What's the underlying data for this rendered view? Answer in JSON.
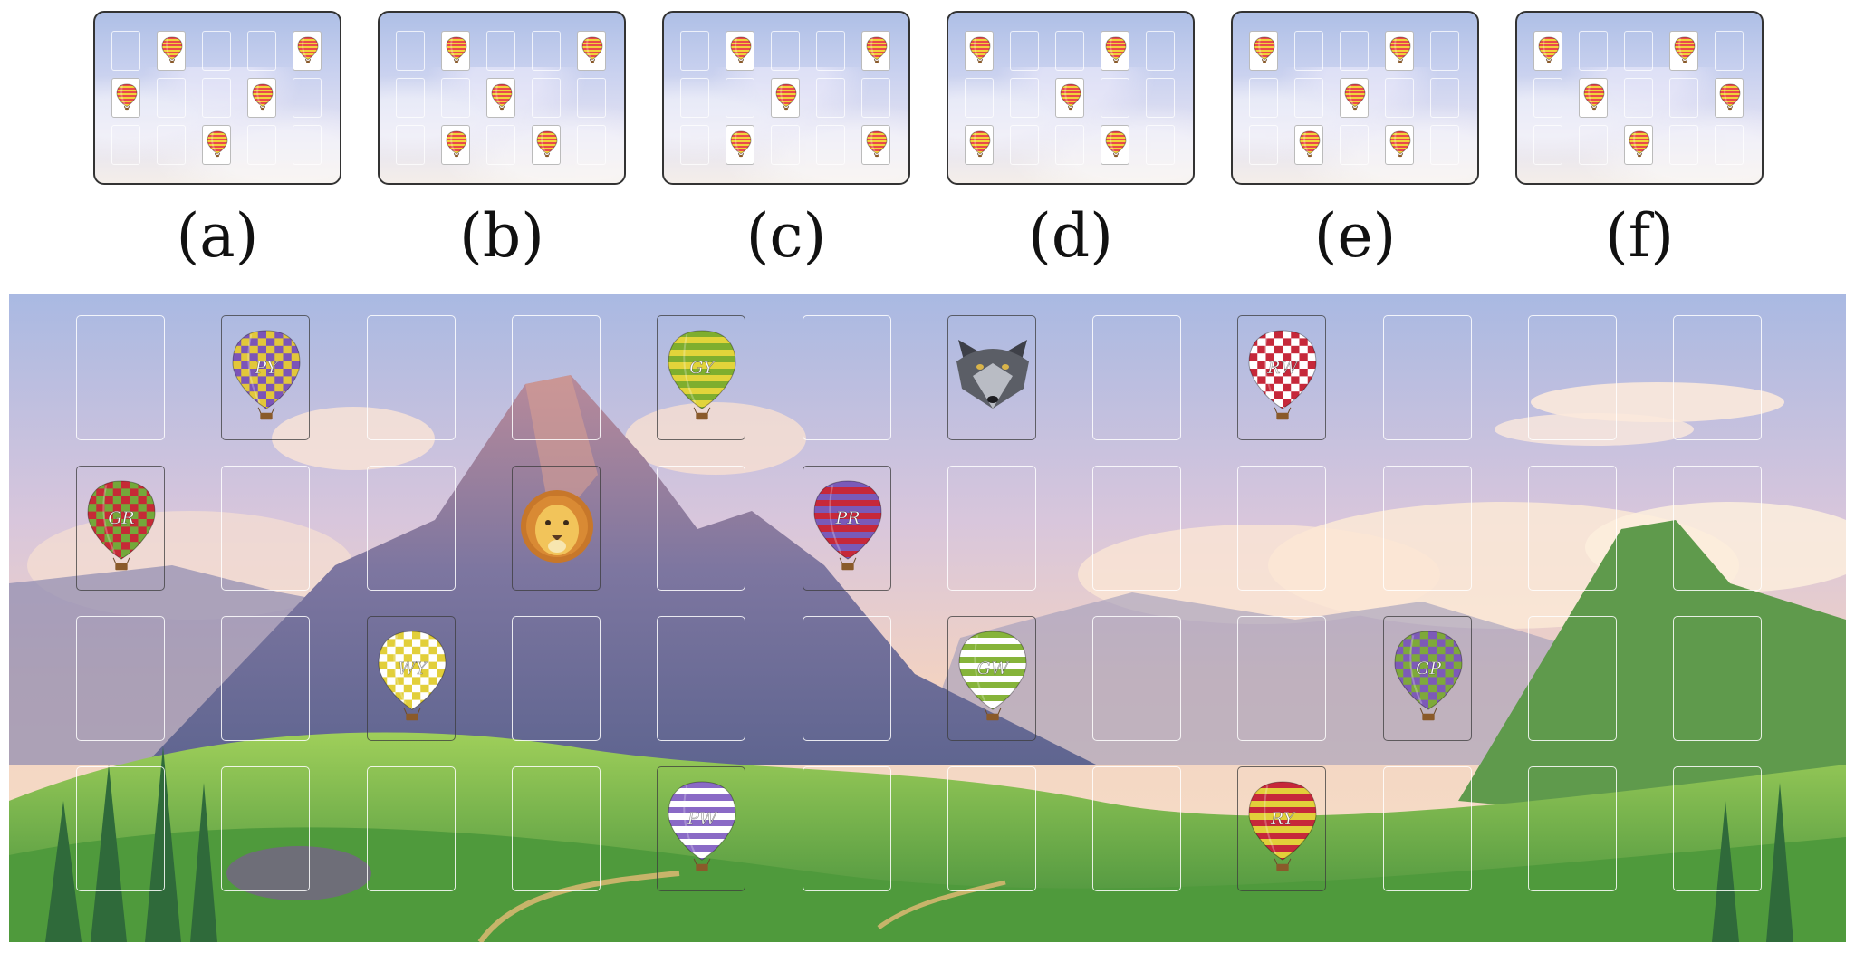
{
  "panels": [
    {
      "label": "(a)",
      "cards": [
        [
          0,
          1
        ],
        [
          0,
          4
        ],
        [
          1,
          0
        ],
        [
          1,
          3
        ],
        [
          2,
          2
        ]
      ]
    },
    {
      "label": "(b)",
      "cards": [
        [
          0,
          1
        ],
        [
          0,
          4
        ],
        [
          1,
          2
        ],
        [
          2,
          1
        ],
        [
          2,
          3
        ]
      ]
    },
    {
      "label": "(c)",
      "cards": [
        [
          0,
          1
        ],
        [
          0,
          4
        ],
        [
          1,
          2
        ],
        [
          2,
          1
        ],
        [
          2,
          4
        ]
      ]
    },
    {
      "label": "(d)",
      "cards": [
        [
          0,
          0
        ],
        [
          0,
          3
        ],
        [
          1,
          2
        ],
        [
          2,
          0
        ],
        [
          2,
          3
        ]
      ]
    },
    {
      "label": "(e)",
      "cards": [
        [
          0,
          0
        ],
        [
          0,
          3
        ],
        [
          1,
          2
        ],
        [
          2,
          1
        ],
        [
          2,
          3
        ]
      ]
    },
    {
      "label": "(f)",
      "cards": [
        [
          0,
          0
        ],
        [
          0,
          3
        ],
        [
          1,
          1
        ],
        [
          1,
          4
        ],
        [
          2,
          2
        ]
      ]
    }
  ],
  "board": {
    "rows": 4,
    "cols": 12,
    "cards": [
      {
        "row": 0,
        "col": 1,
        "type": "balloon",
        "label": "PY",
        "colors": [
          "#7b54b8",
          "#e2c73a"
        ],
        "pattern": "checker"
      },
      {
        "row": 0,
        "col": 4,
        "type": "balloon",
        "label": "GY",
        "colors": [
          "#7fae2e",
          "#e2d43a"
        ],
        "pattern": "stripe"
      },
      {
        "row": 0,
        "col": 6,
        "type": "animal",
        "icon": "wolf-icon"
      },
      {
        "row": 0,
        "col": 8,
        "type": "balloon",
        "label": "RW",
        "colors": [
          "#c6283a",
          "#ffffff"
        ],
        "pattern": "checker"
      },
      {
        "row": 1,
        "col": 0,
        "type": "balloon",
        "label": "GR",
        "colors": [
          "#74a83a",
          "#c62a36"
        ],
        "pattern": "checker"
      },
      {
        "row": 1,
        "col": 3,
        "type": "animal",
        "icon": "lion-icon"
      },
      {
        "row": 1,
        "col": 5,
        "type": "balloon",
        "label": "PR",
        "colors": [
          "#7a5ab8",
          "#c6283a"
        ],
        "pattern": "stripe"
      },
      {
        "row": 2,
        "col": 2,
        "type": "balloon",
        "label": "WY",
        "colors": [
          "#ffffff",
          "#e2cf3a"
        ],
        "pattern": "checker"
      },
      {
        "row": 2,
        "col": 6,
        "type": "balloon",
        "label": "GW",
        "colors": [
          "#86b43a",
          "#ffffff"
        ],
        "pattern": "stripe"
      },
      {
        "row": 2,
        "col": 9,
        "type": "balloon",
        "label": "GP",
        "colors": [
          "#7ea93a",
          "#7d5ab8"
        ],
        "pattern": "checker"
      },
      {
        "row": 3,
        "col": 4,
        "type": "balloon",
        "label": "PW",
        "colors": [
          "#8a6ac6",
          "#ffffff"
        ],
        "pattern": "stripe"
      },
      {
        "row": 3,
        "col": 8,
        "type": "balloon",
        "label": "RY",
        "colors": [
          "#c6283a",
          "#e2cf3a"
        ],
        "pattern": "stripe"
      }
    ]
  }
}
